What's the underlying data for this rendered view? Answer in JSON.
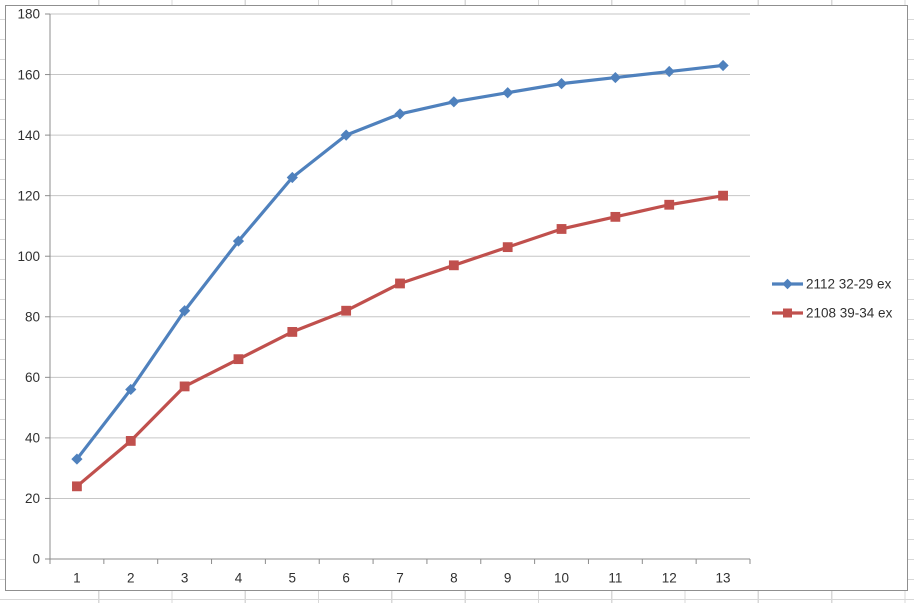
{
  "chart_data": {
    "type": "line",
    "title": "",
    "xlabel": "",
    "ylabel": "",
    "categories": [
      "1",
      "2",
      "3",
      "4",
      "5",
      "6",
      "7",
      "8",
      "9",
      "10",
      "11",
      "12",
      "13"
    ],
    "yticks": [
      0,
      20,
      40,
      60,
      80,
      100,
      120,
      140,
      160,
      180
    ],
    "ylim": [
      0,
      180
    ],
    "grid": true,
    "legend_position": "right",
    "series": [
      {
        "name": "2112 32-29 ex",
        "color": "#4F81BD",
        "marker": "diamond",
        "values": [
          33,
          56,
          82,
          105,
          126,
          140,
          147,
          151,
          154,
          157,
          159,
          161,
          163
        ]
      },
      {
        "name": "2108 39-34 ex",
        "color": "#C0504D",
        "marker": "square",
        "values": [
          24,
          39,
          57,
          66,
          75,
          82,
          91,
          97,
          103,
          109,
          113,
          117,
          120
        ]
      }
    ]
  },
  "colors": {
    "axis": "#8c8c8c",
    "gridline": "#c6c6c6",
    "tick_text": "#303030",
    "chart_border": "#8f8f8f",
    "sheet_grid": "#d8d8d8",
    "plot_bg": "#ffffff"
  }
}
